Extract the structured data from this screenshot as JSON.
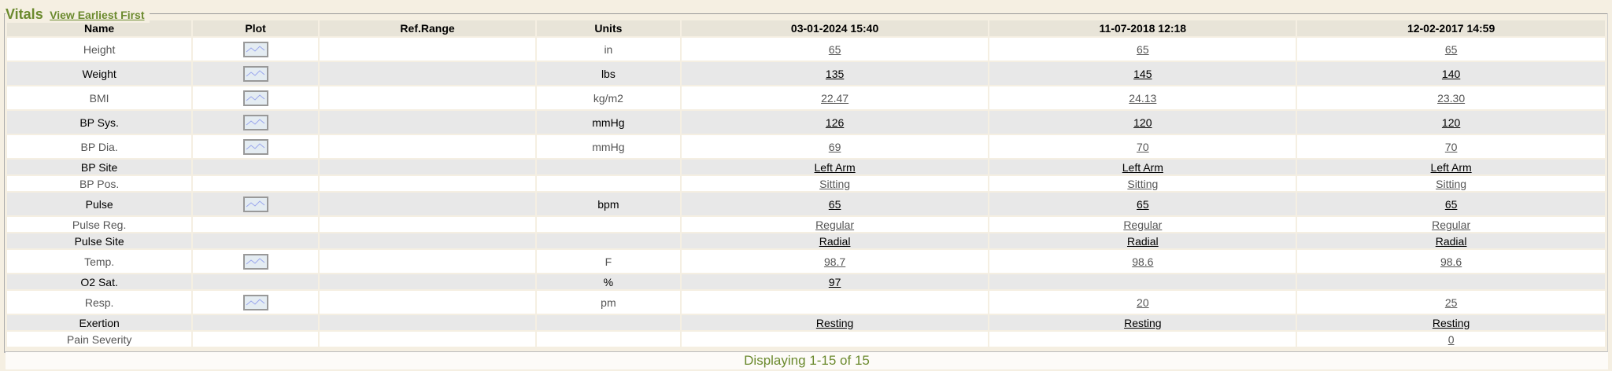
{
  "panel": {
    "title": "Vitals",
    "sort_link": "View Earliest First"
  },
  "columns": [
    "Name",
    "Plot",
    "Ref.Range",
    "Units",
    "03-01-2024 15:40",
    "11-07-2018 12:18",
    "12-02-2017 14:59"
  ],
  "plot_icon": "line-chart-icon",
  "rows": [
    {
      "name": "Height",
      "plot": true,
      "ref": "",
      "units": "in",
      "v": [
        "65",
        "65",
        "65"
      ]
    },
    {
      "name": "Weight",
      "plot": true,
      "ref": "",
      "units": "lbs",
      "v": [
        "135",
        "145",
        "140"
      ]
    },
    {
      "name": "BMI",
      "plot": true,
      "ref": "",
      "units": "kg/m2",
      "v": [
        "22.47",
        "24.13",
        "23.30"
      ]
    },
    {
      "name": "BP Sys.",
      "plot": true,
      "ref": "",
      "units": "mmHg",
      "v": [
        "126",
        "120",
        "120"
      ]
    },
    {
      "name": "BP Dia.",
      "plot": true,
      "ref": "",
      "units": "mmHg",
      "v": [
        "69",
        "70",
        "70"
      ]
    },
    {
      "name": "BP Site",
      "plot": false,
      "ref": "",
      "units": "",
      "v": [
        "Left Arm",
        "Left Arm",
        "Left Arm"
      ]
    },
    {
      "name": "BP Pos.",
      "plot": false,
      "ref": "",
      "units": "",
      "v": [
        "Sitting",
        "Sitting",
        "Sitting"
      ]
    },
    {
      "name": "Pulse",
      "plot": true,
      "ref": "",
      "units": "bpm",
      "v": [
        "65",
        "65",
        "65"
      ]
    },
    {
      "name": "Pulse Reg.",
      "plot": false,
      "ref": "",
      "units": "",
      "v": [
        "Regular",
        "Regular",
        "Regular"
      ]
    },
    {
      "name": "Pulse Site",
      "plot": false,
      "ref": "",
      "units": "",
      "v": [
        "Radial",
        "Radial",
        "Radial"
      ]
    },
    {
      "name": "Temp.",
      "plot": true,
      "ref": "",
      "units": "F",
      "v": [
        "98.7",
        "98.6",
        "98.6"
      ]
    },
    {
      "name": "O2 Sat.",
      "plot": false,
      "ref": "",
      "units": "%",
      "v": [
        "97",
        "",
        ""
      ]
    },
    {
      "name": "Resp.",
      "plot": true,
      "ref": "",
      "units": "pm",
      "v": [
        "",
        "20",
        "25"
      ]
    },
    {
      "name": "Exertion",
      "plot": false,
      "ref": "",
      "units": "",
      "v": [
        "Resting",
        "Resting",
        "Resting"
      ]
    },
    {
      "name": "Pain Severity",
      "plot": false,
      "ref": "",
      "units": "",
      "v": [
        "",
        "",
        "0"
      ]
    }
  ],
  "footer": "Displaying 1-15 of 15"
}
